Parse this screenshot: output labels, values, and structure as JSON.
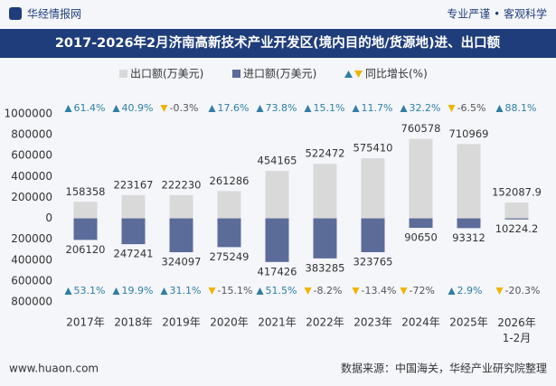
{
  "header": {
    "logo": "华经情报网",
    "slogan": "专业严谨 • 客观科学"
  },
  "chart_data": {
    "type": "bar",
    "title": "2017-2026年2月济南高新技术产业开发区(境内目的地/货源地)进、出口额",
    "categories": [
      "2017年",
      "2018年",
      "2019年",
      "2020年",
      "2021年",
      "2022年",
      "2023年",
      "2024年",
      "2025年",
      "2026年\n1-2月"
    ],
    "series": [
      {
        "name": "出口额(万美元)",
        "color": "#d9d9d9",
        "values": [
          158358,
          223167,
          222230,
          261286,
          454165,
          522472,
          575410,
          760578,
          710969,
          152087.9
        ]
      },
      {
        "name": "进口额(万美元)",
        "color": "#5b6b9a",
        "values": [
          -206120,
          -247241,
          -324097,
          -275249,
          -417426,
          -383285,
          -323765,
          -90650,
          -93312,
          -10224.2
        ],
        "value_labels": [
          "206120",
          "247241",
          "324097",
          "275249",
          "417426",
          "383285",
          "323765",
          "90650",
          "93312",
          "10224.2"
        ]
      }
    ],
    "growth_legend": "同比增长(%)",
    "growth": [
      {
        "values": [
          61.4,
          40.9,
          -0.3,
          17.6,
          73.8,
          15.1,
          11.7,
          32.2,
          -6.5,
          88.1
        ],
        "value_labels": [
          "61.4%",
          "40.9%",
          "-0.3%",
          "17.6%",
          "73.8%",
          "15.1%",
          "11.7%",
          "32.2%",
          "-6.5%",
          "88.1%"
        ]
      },
      {
        "values": [
          53.1,
          19.9,
          31.1,
          -15.1,
          51.5,
          -8.2,
          -13.4,
          -72,
          2.9,
          -20.3
        ],
        "value_labels": [
          "53.1%",
          "19.9%",
          "31.1%",
          "-15.1%",
          "51.5%",
          "-8.2%",
          "-13.4%",
          "-72%",
          "2.9%",
          "-20.3%"
        ]
      }
    ],
    "up_color": "#2f7fa3",
    "down_color": "#f0b400",
    "ylim": [
      -800000,
      1000000
    ],
    "yticks": [
      1000000,
      800000,
      600000,
      400000,
      200000,
      0,
      {
        "value": -200000,
        "label": "200000"
      },
      {
        "value": -400000,
        "label": "400000"
      },
      {
        "value": -600000,
        "label": "600000"
      },
      {
        "value": -800000,
        "label": "800000"
      }
    ],
    "grid": false
  },
  "footer": {
    "website": "www.huaon.com",
    "source": "数据来源：中国海关，华经产业研究院整理"
  }
}
